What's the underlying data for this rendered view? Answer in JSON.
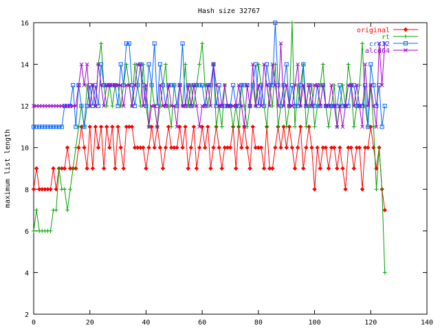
{
  "chart_data": {
    "type": "line",
    "title": "Hash size 32767",
    "xlabel": "",
    "ylabel": "maximum list length",
    "xlim": [
      0,
      140
    ],
    "ylim": [
      2,
      16
    ],
    "xticks": [
      0,
      20,
      40,
      60,
      80,
      100,
      120,
      140
    ],
    "yticks": [
      2,
      4,
      6,
      8,
      10,
      12,
      14,
      16
    ],
    "grid": false,
    "legend_position": "top-right",
    "series": [
      {
        "name": "original",
        "color": "#ff0000",
        "marker": "diamond",
        "x": [
          0,
          1,
          2,
          3,
          4,
          5,
          6,
          7,
          8,
          9,
          10,
          11,
          12,
          13,
          14,
          15,
          16,
          17,
          18,
          19,
          20,
          21,
          22,
          23,
          24,
          25,
          26,
          27,
          28,
          29,
          30,
          31,
          32,
          33,
          34,
          35,
          36,
          37,
          38,
          39,
          40,
          41,
          42,
          43,
          44,
          45,
          46,
          47,
          48,
          49,
          50,
          51,
          52,
          53,
          54,
          55,
          56,
          57,
          58,
          59,
          60,
          61,
          62,
          63,
          64,
          65,
          66,
          67,
          68,
          69,
          70,
          71,
          72,
          73,
          74,
          75,
          76,
          77,
          78,
          79,
          80,
          81,
          82,
          83,
          84,
          85,
          86,
          87,
          88,
          89,
          90,
          91,
          92,
          93,
          94,
          95,
          96,
          97,
          98,
          99,
          100,
          101,
          102,
          103,
          104,
          105,
          106,
          107,
          108,
          109,
          110,
          111,
          112,
          113,
          114,
          115,
          116,
          117,
          118,
          119,
          120,
          121,
          122,
          123,
          124,
          125
        ],
        "y": [
          8,
          9,
          8,
          8,
          8,
          8,
          8,
          9,
          8,
          9,
          9,
          9,
          10,
          9,
          9,
          9,
          10,
          11,
          10,
          9,
          11,
          9,
          11,
          10,
          11,
          9,
          11,
          10,
          11,
          9,
          11,
          10,
          9,
          11,
          11,
          11,
          10,
          10,
          10,
          10,
          9,
          10,
          11,
          10,
          11,
          10,
          9,
          10,
          11,
          10,
          10,
          10,
          11,
          10,
          11,
          9,
          10,
          11,
          9,
          10,
          11,
          10,
          11,
          9,
          10,
          11,
          10,
          9,
          10,
          10,
          10,
          11,
          9,
          11,
          10,
          11,
          10,
          9,
          11,
          10,
          10,
          10,
          9,
          11,
          9,
          9,
          10,
          11,
          10,
          11,
          10,
          11,
          10,
          9,
          10,
          11,
          9,
          10,
          11,
          10,
          8,
          10,
          9,
          10,
          10,
          9,
          10,
          10,
          9,
          10,
          9,
          8,
          10,
          10,
          9,
          10,
          10,
          8,
          10,
          10,
          11,
          10,
          9,
          10,
          8,
          7
        ]
      },
      {
        "name": "rt",
        "color": "#00a000",
        "marker": "plus",
        "x": [
          0,
          1,
          2,
          3,
          4,
          5,
          6,
          7,
          8,
          9,
          10,
          11,
          12,
          13,
          14,
          15,
          16,
          17,
          18,
          19,
          20,
          21,
          22,
          23,
          24,
          25,
          26,
          27,
          28,
          29,
          30,
          31,
          32,
          33,
          34,
          35,
          36,
          37,
          38,
          39,
          40,
          41,
          42,
          43,
          44,
          45,
          46,
          47,
          48,
          49,
          50,
          51,
          52,
          53,
          54,
          55,
          56,
          57,
          58,
          59,
          60,
          61,
          62,
          63,
          64,
          65,
          66,
          67,
          68,
          69,
          70,
          71,
          72,
          73,
          74,
          75,
          76,
          77,
          78,
          79,
          80,
          81,
          82,
          83,
          84,
          85,
          86,
          87,
          88,
          89,
          90,
          91,
          92,
          93,
          94,
          95,
          96,
          97,
          98,
          99,
          100,
          101,
          102,
          103,
          104,
          105,
          106,
          107,
          108,
          109,
          110,
          111,
          112,
          113,
          114,
          115,
          116,
          117,
          118,
          119,
          120,
          121,
          122,
          123,
          124,
          125
        ],
        "y": [
          6,
          7,
          6,
          6,
          6,
          6,
          6,
          7,
          7,
          9,
          8,
          8,
          7,
          8,
          9,
          10,
          11,
          12,
          11,
          13,
          12,
          13,
          12,
          14,
          15,
          13,
          12,
          13,
          12,
          13,
          13,
          12,
          13,
          14,
          13,
          12,
          14,
          13,
          12,
          14,
          12,
          11,
          13,
          12,
          11,
          12,
          13,
          14,
          12,
          11,
          13,
          12,
          13,
          12,
          14,
          12,
          13,
          12,
          13,
          14,
          15,
          13,
          12,
          13,
          14,
          11,
          12,
          11,
          13,
          12,
          12,
          11,
          12,
          11,
          13,
          12,
          11,
          12,
          13,
          12,
          14,
          13,
          12,
          11,
          13,
          12,
          14,
          11,
          12,
          13,
          11,
          12,
          16,
          11,
          13,
          12,
          14,
          11,
          12,
          13,
          11,
          12,
          13,
          14,
          12,
          11,
          12,
          13,
          11,
          12,
          13,
          12,
          14,
          13,
          11,
          12,
          13,
          15,
          12,
          11,
          13,
          11,
          8,
          10,
          8,
          4
        ]
      },
      {
        "name": "crc32",
        "color": "#0060ff",
        "marker": "square",
        "x": [
          0,
          1,
          2,
          3,
          4,
          5,
          6,
          7,
          8,
          9,
          10,
          11,
          12,
          13,
          14,
          15,
          16,
          17,
          18,
          19,
          20,
          21,
          22,
          23,
          24,
          25,
          26,
          27,
          28,
          29,
          30,
          31,
          32,
          33,
          34,
          35,
          36,
          37,
          38,
          39,
          40,
          41,
          42,
          43,
          44,
          45,
          46,
          47,
          48,
          49,
          50,
          51,
          52,
          53,
          54,
          55,
          56,
          57,
          58,
          59,
          60,
          61,
          62,
          63,
          64,
          65,
          66,
          67,
          68,
          69,
          70,
          71,
          72,
          73,
          74,
          75,
          76,
          77,
          78,
          79,
          80,
          81,
          82,
          83,
          84,
          85,
          86,
          87,
          88,
          89,
          90,
          91,
          92,
          93,
          94,
          95,
          96,
          97,
          98,
          99,
          100,
          101,
          102,
          103,
          104,
          105,
          106,
          107,
          108,
          109,
          110,
          111,
          112,
          113,
          114,
          115,
          116,
          117,
          118,
          119,
          120,
          121,
          122,
          123,
          124,
          125
        ],
        "y": [
          11,
          11,
          11,
          11,
          11,
          11,
          11,
          11,
          11,
          11,
          11,
          12,
          12,
          12,
          13,
          11,
          13,
          12,
          11,
          12,
          13,
          12,
          13,
          12,
          14,
          13,
          13,
          13,
          13,
          13,
          12,
          14,
          13,
          15,
          15,
          13,
          12,
          13,
          14,
          13,
          12,
          14,
          13,
          15,
          12,
          14,
          13,
          12,
          13,
          13,
          13,
          12,
          13,
          15,
          12,
          13,
          12,
          13,
          13,
          13,
          13,
          12,
          13,
          13,
          14,
          12,
          13,
          12,
          12,
          12,
          12,
          13,
          12,
          12,
          13,
          13,
          13,
          12,
          13,
          14,
          12,
          13,
          12,
          14,
          13,
          13,
          16,
          13,
          12,
          13,
          14,
          12,
          13,
          12,
          12,
          13,
          14,
          12,
          13,
          12,
          12,
          13,
          12,
          13,
          12,
          12,
          12,
          12,
          12,
          13,
          12,
          12,
          12,
          13,
          13,
          12,
          12,
          12,
          13,
          11,
          14,
          13,
          12,
          13,
          11,
          12
        ]
      },
      {
        "name": "alcd64",
        "color": "#a000d0",
        "marker": "cross",
        "x": [
          0,
          1,
          2,
          3,
          4,
          5,
          6,
          7,
          8,
          9,
          10,
          11,
          12,
          13,
          14,
          15,
          16,
          17,
          18,
          19,
          20,
          21,
          22,
          23,
          24,
          25,
          26,
          27,
          28,
          29,
          30,
          31,
          32,
          33,
          34,
          35,
          36,
          37,
          38,
          39,
          40,
          41,
          42,
          43,
          44,
          45,
          46,
          47,
          48,
          49,
          50,
          51,
          52,
          53,
          54,
          55,
          56,
          57,
          58,
          59,
          60,
          61,
          62,
          63,
          64,
          65,
          66,
          67,
          68,
          69,
          70,
          71,
          72,
          73,
          74,
          75,
          76,
          77,
          78,
          79,
          80,
          81,
          82,
          83,
          84,
          85,
          86,
          87,
          88,
          89,
          90,
          91,
          92,
          93,
          94,
          95,
          96,
          97,
          98,
          99,
          100,
          101,
          102,
          103,
          104,
          105,
          106,
          107,
          108,
          109,
          110,
          111,
          112,
          113,
          114,
          115,
          116,
          117,
          118,
          119,
          120,
          121,
          122,
          123,
          124,
          125
        ],
        "y": [
          12,
          12,
          12,
          12,
          12,
          12,
          12,
          12,
          12,
          12,
          12,
          12,
          12,
          12,
          12,
          12,
          13,
          14,
          13,
          14,
          12,
          13,
          12,
          14,
          13,
          12,
          13,
          13,
          13,
          13,
          13,
          13,
          12,
          13,
          13,
          12,
          13,
          14,
          14,
          12,
          13,
          11,
          12,
          12,
          11,
          13,
          12,
          12,
          13,
          12,
          12,
          11,
          13,
          12,
          12,
          13,
          12,
          13,
          12,
          11,
          12,
          12,
          13,
          12,
          14,
          13,
          12,
          12,
          13,
          12,
          12,
          12,
          12,
          13,
          12,
          11,
          13,
          12,
          14,
          12,
          13,
          12,
          14,
          13,
          12,
          14,
          13,
          12,
          15,
          12,
          13,
          12,
          12,
          13,
          14,
          12,
          13,
          12,
          13,
          12,
          13,
          13,
          12,
          13,
          12,
          12,
          13,
          12,
          11,
          12,
          11,
          12,
          13,
          13,
          12,
          13,
          12,
          11,
          14,
          12,
          13,
          12,
          11,
          15,
          13,
          15
        ]
      }
    ]
  }
}
